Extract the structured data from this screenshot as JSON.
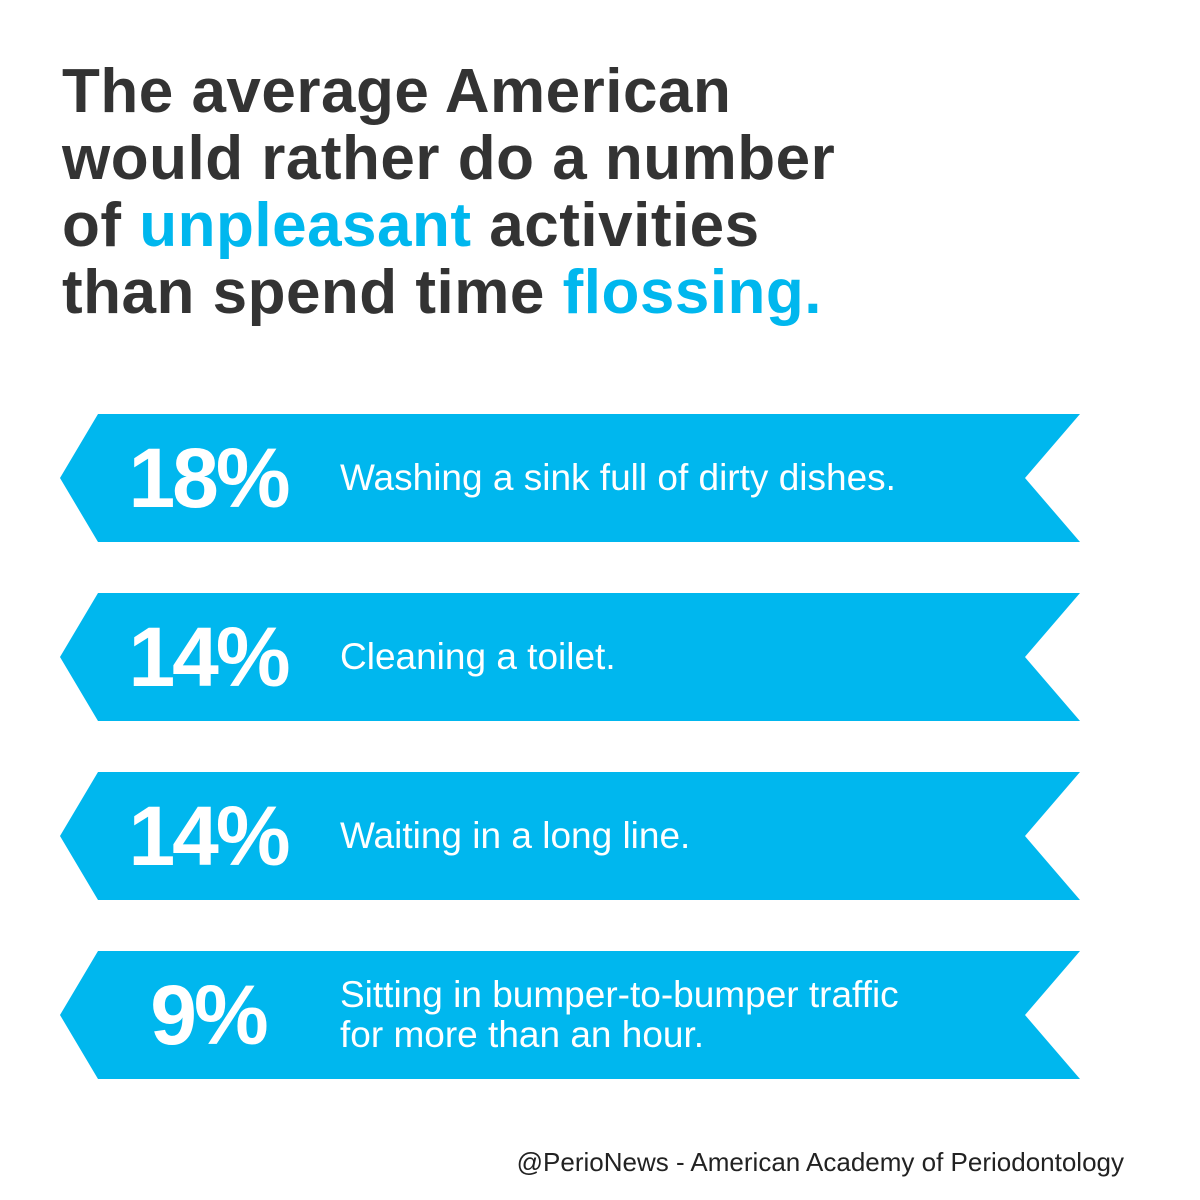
{
  "headline": {
    "line1": "The average American",
    "line2": "would rather do a number",
    "line3_pre": "of ",
    "line3_highlight": "unpleasant",
    "line3_post": " activities",
    "line4_pre": "than spend time ",
    "line4_highlight": "flossing."
  },
  "colors": {
    "accent": "#00b7ee",
    "headline_text": "#333333",
    "banner_text": "#ffffff"
  },
  "stats": [
    {
      "percent": "18%",
      "value": 18,
      "activity": "Washing a sink full of dirty dishes."
    },
    {
      "percent": "14%",
      "value": 14,
      "activity": "Cleaning a toilet."
    },
    {
      "percent": "14%",
      "value": 14,
      "activity": "Waiting in a long line."
    },
    {
      "percent": "9%",
      "value": 9,
      "activity": "Sitting in bumper-to-bumper traffic\nfor more than an hour."
    }
  ],
  "footer": {
    "credit": "@PerioNews - American Academy of Periodontology"
  }
}
